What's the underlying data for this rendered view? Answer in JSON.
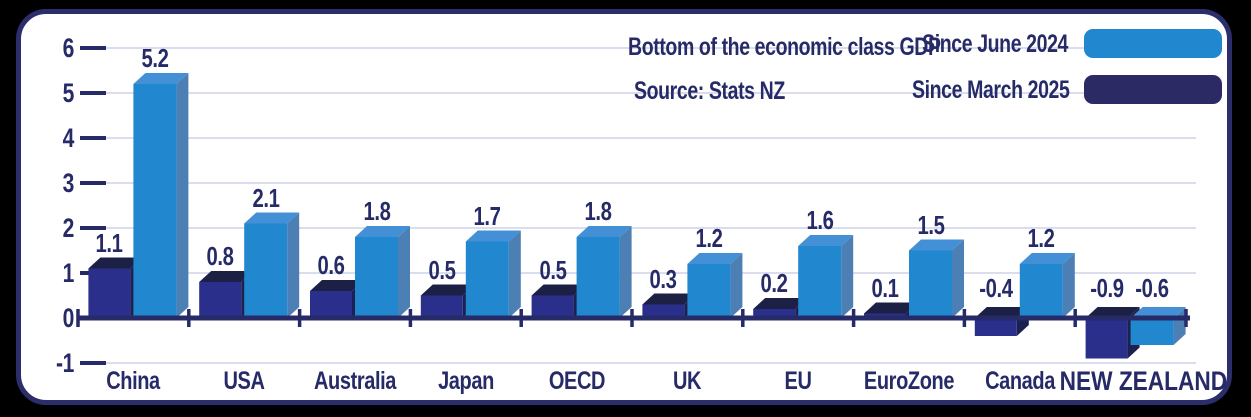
{
  "header": {
    "title": "Bottom of the economic class GDP",
    "source": "Source: Stats NZ"
  },
  "legend": {
    "items": [
      {
        "label": "Since June 2024",
        "color": "#2187ce"
      },
      {
        "label": "Since March 2025",
        "color": "#2b2a64"
      }
    ]
  },
  "colors": {
    "text_navy": "#262a67",
    "axis": "#262a67",
    "gridline": "#dadded",
    "frame": "#2b2e6a",
    "background": "#ffffff",
    "outside": "#000000"
  },
  "chart_data": {
    "type": "bar",
    "title": "Bottom of the economic class GDP",
    "subtitle": "Source: Stats NZ",
    "categories": [
      "China",
      "USA",
      "Australia",
      "Japan",
      "OECD",
      "UK",
      "EU",
      "EuroZone",
      "Canada",
      "NEW ZEALAND"
    ],
    "emphasized_category": "NEW ZEALAND",
    "series": [
      {
        "name": "Since March 2025",
        "values": [
          1.1,
          0.8,
          0.6,
          0.5,
          0.5,
          0.3,
          0.2,
          0.1,
          -0.4,
          -0.9
        ],
        "colors": {
          "front": "#2a2f8c",
          "top": "#1c2045",
          "side": "#1d2150"
        }
      },
      {
        "name": "Since June 2024",
        "values": [
          5.2,
          2.1,
          1.8,
          1.7,
          1.8,
          1.2,
          1.6,
          1.5,
          1.2,
          -0.6
        ],
        "colors": {
          "front": "#2187ce",
          "top": "#4390d6",
          "side": "#4c80b4"
        }
      }
    ],
    "xlabel": "",
    "ylabel": "",
    "ylim": [
      -1,
      6
    ],
    "yticks": [
      -1,
      0,
      1,
      2,
      3,
      4,
      5,
      6
    ],
    "grid": true,
    "legend_position": "top-right",
    "bar_style": "3d"
  }
}
